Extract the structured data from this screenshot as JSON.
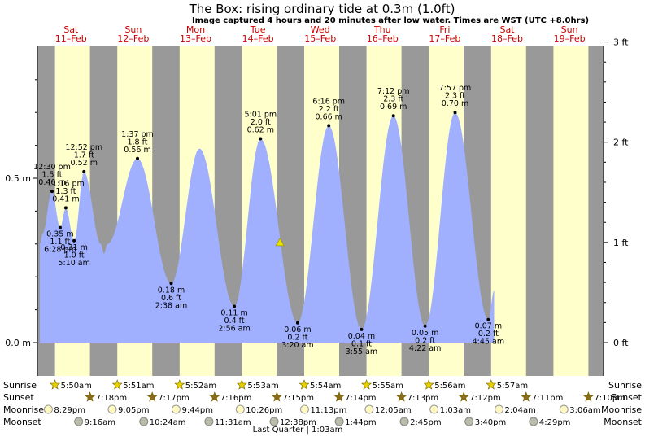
{
  "header": {
    "title": "The Box: rising  ordinary tide at 0.3m (1.0ft)",
    "subtitle": "Image captured 4 hours and 20 minutes after low water. Times are WST (UTC +8.0hrs)"
  },
  "colors": {
    "day": "#ffffcc",
    "night": "#999999",
    "water": "#a0b0ff",
    "dayname": "#cc0000"
  },
  "chart_data": {
    "type": "area",
    "title": "The Box: rising  ordinary tide at 0.3m (1.0ft)",
    "ylabel_left_unit": "m",
    "ylabel_right_unit": "ft",
    "y_ticks_left": [
      "0.0 m",
      "0.5 m"
    ],
    "y_ticks_right": [
      "0 ft",
      "1 ft",
      "2 ft",
      "3 ft"
    ],
    "ylim_m": [
      -0.1,
      0.91
    ],
    "days": [
      {
        "name": "Sat",
        "date": "11–Feb"
      },
      {
        "name": "Sun",
        "date": "12–Feb"
      },
      {
        "name": "Mon",
        "date": "13–Feb"
      },
      {
        "name": "Tue",
        "date": "14–Feb"
      },
      {
        "name": "Wed",
        "date": "15–Feb"
      },
      {
        "name": "Thu",
        "date": "16–Feb"
      },
      {
        "name": "Fri",
        "date": "17–Feb"
      },
      {
        "name": "Sat",
        "date": "18–Feb"
      },
      {
        "name": "Sun",
        "date": "19–Feb"
      }
    ],
    "x_hours_start": 0,
    "x_hours_end": 192,
    "tide_curve_hours_m": [
      [
        0,
        0.3
      ],
      [
        1,
        0.33
      ],
      [
        4.7,
        0.46
      ],
      [
        7.8,
        0.35
      ],
      [
        10,
        0.41
      ],
      [
        13.2,
        0.31
      ],
      [
        17,
        0.52
      ],
      [
        23.5,
        0.3
      ],
      [
        24.7,
        0.27
      ],
      [
        26,
        0.3
      ],
      [
        37.6,
        0.56
      ],
      [
        50.6,
        0.18
      ],
      [
        61.5,
        0.59
      ],
      [
        74.9,
        0.11
      ],
      [
        85,
        0.62
      ],
      [
        99.3,
        0.06
      ],
      [
        111.3,
        0.66
      ],
      [
        123.9,
        0.04
      ],
      [
        136.2,
        0.69
      ],
      [
        148.4,
        0.05
      ],
      [
        159.95,
        0.7
      ],
      [
        172.75,
        0.07
      ],
      [
        175,
        0.16
      ]
    ],
    "extremes": [
      {
        "h": 4.7,
        "m": "0.46 m",
        "ft": "1.5 ft",
        "t": "12:30 pm",
        "high": true
      },
      {
        "h": 7.8,
        "m": "0.35 m",
        "ft": "1.1 ft",
        "t": "6:28 pm",
        "high": false
      },
      {
        "h": 10.0,
        "m": "0.41 m",
        "ft": "1.3 ft",
        "t": "11:16 pm",
        "high": true
      },
      {
        "h": 13.2,
        "m": "0.31 m",
        "ft": "1.0 ft",
        "t": "5:10 am",
        "high": false
      },
      {
        "h": 17.0,
        "m": "0.52 m",
        "ft": "1.7 ft",
        "t": "12:52 pm",
        "high": true
      },
      {
        "h": 37.6,
        "m": "0.56 m",
        "ft": "1.8 ft",
        "t": "1:37 pm",
        "high": true
      },
      {
        "h": 50.6,
        "m": "0.18 m",
        "ft": "0.6 ft",
        "t": "2:38 am",
        "high": false
      },
      {
        "h": 74.9,
        "m": "0.11 m",
        "ft": "0.4 ft",
        "t": "2:56 am",
        "high": false
      },
      {
        "h": 85.0,
        "m": "0.62 m",
        "ft": "2.0 ft",
        "t": "5:01 pm",
        "high": true
      },
      {
        "h": 99.3,
        "m": "0.06 m",
        "ft": "0.2 ft",
        "t": "3:20 am",
        "high": false
      },
      {
        "h": 111.3,
        "m": "0.66 m",
        "ft": "2.2 ft",
        "t": "6:16 pm",
        "high": true
      },
      {
        "h": 123.9,
        "m": "0.04 m",
        "ft": "0.1 ft",
        "t": "3:55 am",
        "high": false
      },
      {
        "h": 136.2,
        "m": "0.69 m",
        "ft": "2.3 ft",
        "t": "7:12 pm",
        "high": true
      },
      {
        "h": 148.4,
        "m": "0.05 m",
        "ft": "0.2 ft",
        "t": "4:22 am",
        "high": false
      },
      {
        "h": 159.95,
        "m": "0.70 m",
        "ft": "2.3 ft",
        "t": "7:57 pm",
        "high": true
      },
      {
        "h": 172.75,
        "m": "0.07 m",
        "ft": "0.2 ft",
        "t": "4:45 am",
        "high": false
      }
    ],
    "now_marker_hours": 92.5,
    "sun_moon": {
      "labels": {
        "sunrise": "Sunrise",
        "sunset": "Sunset",
        "moonrise": "Moonrise",
        "moonset": "Moonset"
      },
      "sunrise": [
        "5:50am",
        "5:51am",
        "5:52am",
        "5:53am",
        "5:54am",
        "5:55am",
        "5:56am",
        "5:57am"
      ],
      "sunset": [
        "7:18pm",
        "7:17pm",
        "7:16pm",
        "7:15pm",
        "7:14pm",
        "7:13pm",
        "7:12pm",
        "7:11pm",
        "7:10pm"
      ],
      "moonrise": [
        "8:29pm",
        "9:05pm",
        "9:44pm",
        "10:26pm",
        "11:13pm",
        "12:05am",
        "1:03am",
        "2:04am",
        "3:06am"
      ],
      "moonset": [
        "9:16am",
        "10:24am",
        "11:31am",
        "12:38pm",
        "1:44pm",
        "2:45pm",
        "3:40pm",
        "4:29pm"
      ],
      "moon_phase_note": "Last Quarter | 1:03am"
    }
  }
}
